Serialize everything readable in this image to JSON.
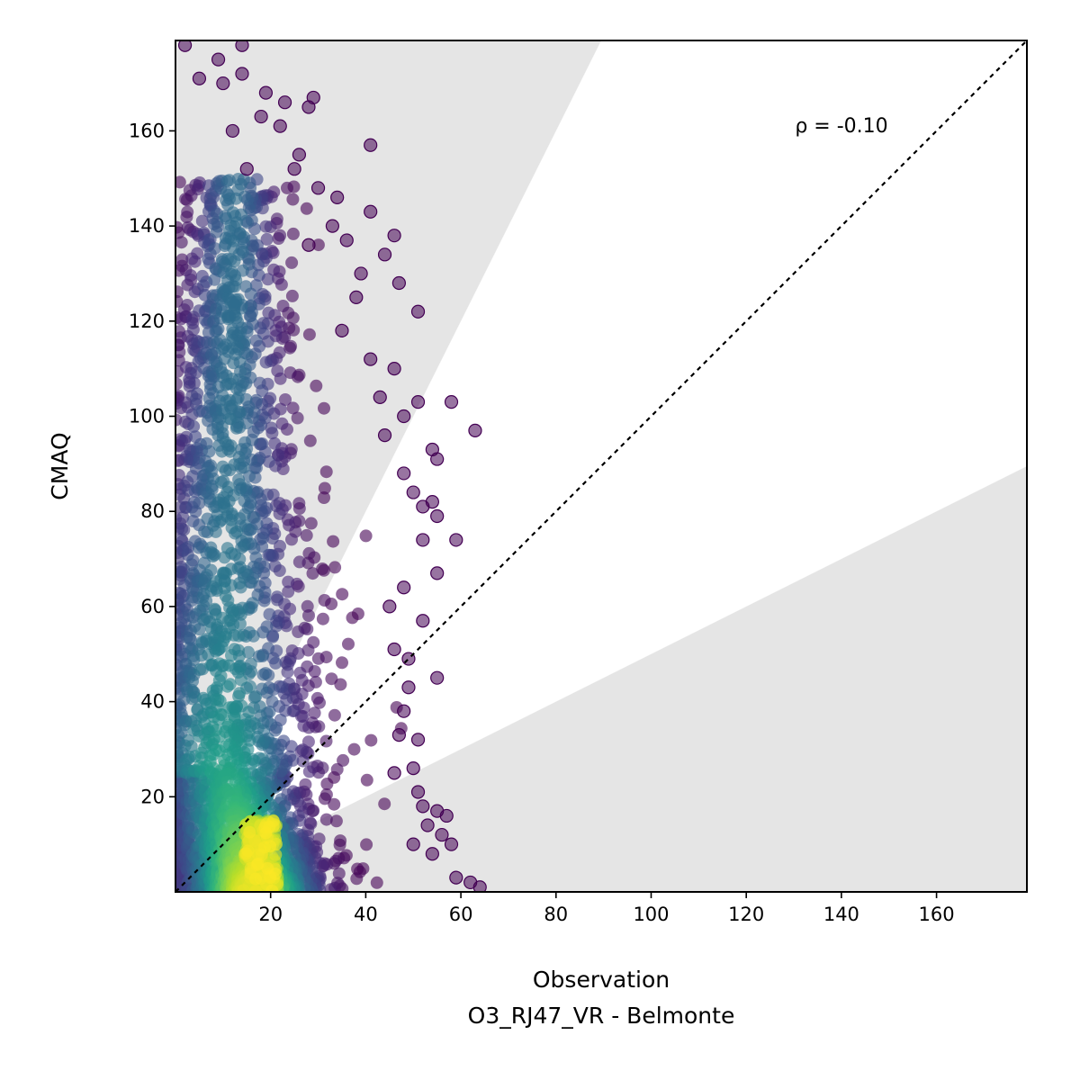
{
  "chart_data": {
    "type": "scatter",
    "xlabel": "Observation",
    "sublabel": "O3_RJ47_VR - Belmonte",
    "ylabel": "CMAQ",
    "annotation": "ρ = -0.10",
    "xlim": [
      0,
      179
    ],
    "ylim": [
      0,
      179
    ],
    "xticks": [
      20,
      40,
      60,
      80,
      100,
      120,
      140,
      160
    ],
    "yticks": [
      20,
      40,
      60,
      80,
      100,
      120,
      140,
      160
    ],
    "reference_line": {
      "type": "identity",
      "style": "dotted",
      "color": "#000000"
    },
    "shaded_bands": {
      "color": "#e5e5e5",
      "upper_band_boundary_slope": 2.0,
      "lower_band_boundary_slope": 0.5
    },
    "colormap": "viridis",
    "grid": false,
    "legend": "none",
    "outliers": [
      [
        2,
        178
      ],
      [
        9,
        175
      ],
      [
        14,
        178
      ],
      [
        5,
        171
      ],
      [
        10,
        170
      ],
      [
        14,
        172
      ],
      [
        19,
        168
      ],
      [
        23,
        166
      ],
      [
        29,
        167
      ],
      [
        18,
        163
      ],
      [
        22,
        161
      ],
      [
        28,
        165
      ],
      [
        41,
        157
      ],
      [
        12,
        160
      ],
      [
        26,
        155
      ],
      [
        15,
        152
      ],
      [
        30,
        148
      ],
      [
        34,
        146
      ],
      [
        25,
        152
      ],
      [
        33,
        140
      ],
      [
        36,
        137
      ],
      [
        41,
        143
      ],
      [
        44,
        134
      ],
      [
        46,
        138
      ],
      [
        28,
        136
      ],
      [
        39,
        130
      ],
      [
        47,
        128
      ],
      [
        38,
        125
      ],
      [
        51,
        122
      ],
      [
        35,
        118
      ],
      [
        41,
        112
      ],
      [
        46,
        110
      ],
      [
        43,
        104
      ],
      [
        48,
        100
      ],
      [
        51,
        103
      ],
      [
        54,
        93
      ],
      [
        55,
        91
      ],
      [
        58,
        103
      ],
      [
        63,
        97
      ],
      [
        44,
        96
      ],
      [
        48,
        88
      ],
      [
        50,
        84
      ],
      [
        52,
        81
      ],
      [
        54,
        82
      ],
      [
        55,
        79
      ],
      [
        59,
        74
      ],
      [
        52,
        74
      ],
      [
        55,
        67
      ],
      [
        48,
        64
      ],
      [
        45,
        60
      ],
      [
        52,
        57
      ],
      [
        46,
        51
      ],
      [
        49,
        49
      ],
      [
        55,
        45
      ],
      [
        49,
        43
      ],
      [
        48,
        38
      ],
      [
        47,
        33
      ],
      [
        51,
        32
      ],
      [
        50,
        26
      ],
      [
        46,
        25
      ],
      [
        51,
        21
      ],
      [
        52,
        18
      ],
      [
        55,
        17
      ],
      [
        57,
        16
      ],
      [
        53,
        14
      ],
      [
        56,
        12
      ],
      [
        58,
        10
      ],
      [
        50,
        10
      ],
      [
        54,
        8
      ],
      [
        59,
        3
      ],
      [
        62,
        2
      ],
      [
        64,
        1
      ]
    ]
  }
}
